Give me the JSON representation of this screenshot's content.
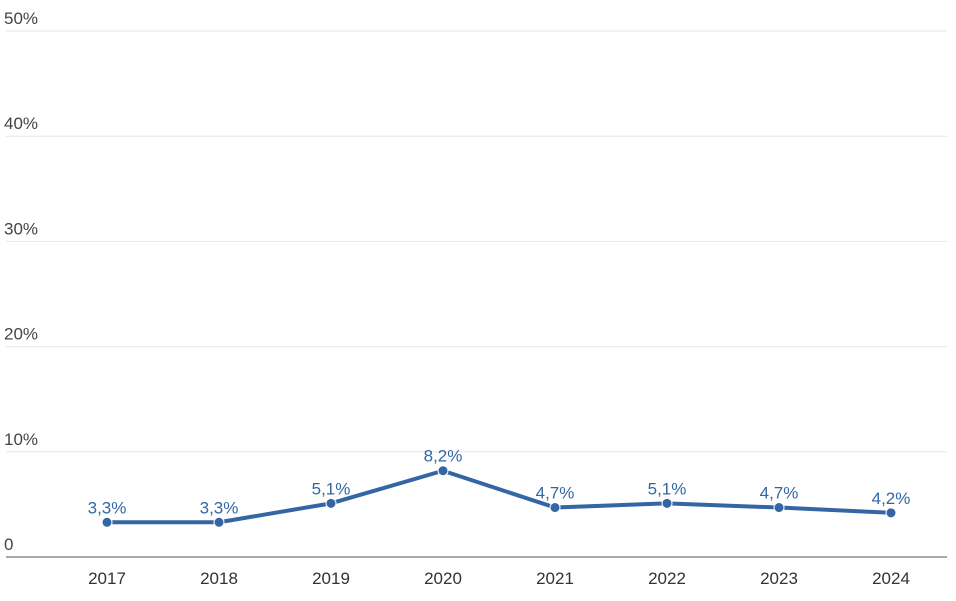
{
  "chart_data": {
    "type": "line",
    "categories": [
      "2017",
      "2018",
      "2019",
      "2020",
      "2021",
      "2022",
      "2023",
      "2024"
    ],
    "series": [
      {
        "values": [
          3.3,
          3.3,
          5.1,
          8.2,
          4.7,
          5.1,
          4.7,
          4.2
        ]
      }
    ],
    "data_labels": [
      "3,3%",
      "3,3%",
      "5,1%",
      "8,2%",
      "4,7%",
      "5,1%",
      "4,7%",
      "4,2%"
    ],
    "y_ticks": [
      {
        "value": 0,
        "label": "0"
      },
      {
        "value": 10,
        "label": "10%"
      },
      {
        "value": 20,
        "label": "20%"
      },
      {
        "value": 30,
        "label": "30%"
      },
      {
        "value": 40,
        "label": "40%"
      },
      {
        "value": 50,
        "label": "50%"
      }
    ],
    "ylim": [
      0,
      50
    ],
    "grid": true,
    "legend": "none",
    "colors": {
      "line": "#3465a4",
      "grid": "#e6e6e6",
      "axis": "#555555",
      "label": "#3465a4"
    }
  }
}
